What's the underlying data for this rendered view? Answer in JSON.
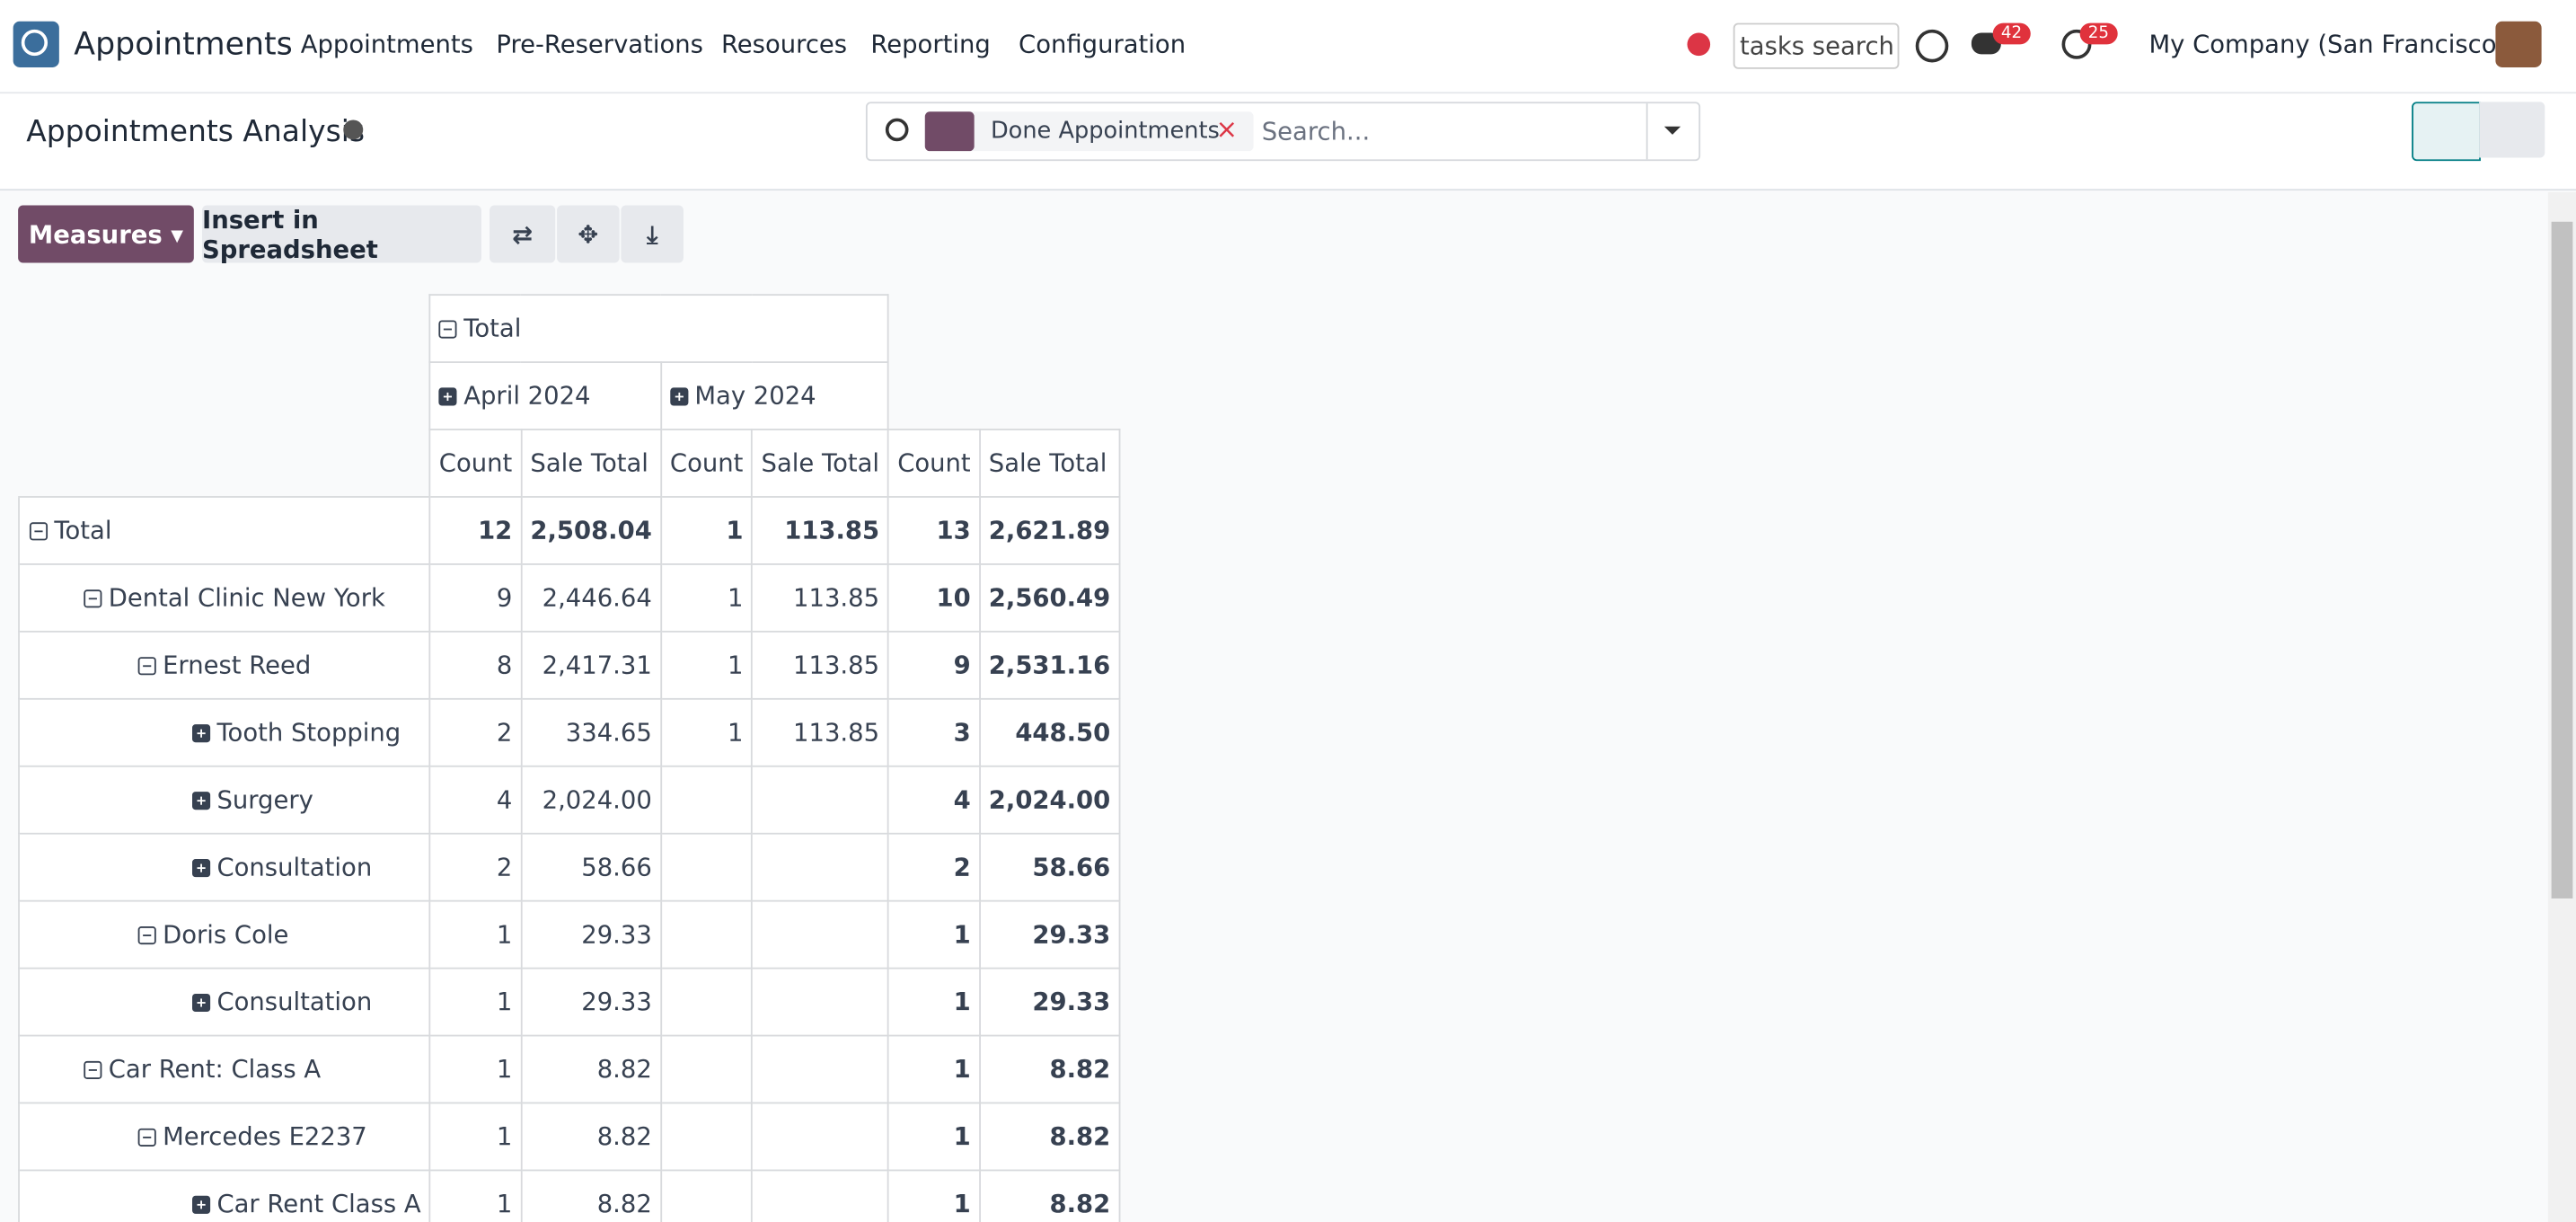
{
  "navbar": {
    "app_name": "Appointments",
    "menu": [
      "Appointments",
      "Pre-Reservations",
      "Resources",
      "Reporting",
      "Configuration"
    ],
    "search_placeholder": "tasks search",
    "messages_badge": "42",
    "activities_badge": "25",
    "company": "My Company (San Francisco)"
  },
  "control_panel": {
    "title": "Appointments Analysis",
    "facet": "Done Appointments",
    "search_placeholder": "Search...",
    "measures_button": "Measures",
    "insert_button": "Insert in Spreadsheet"
  },
  "table": {
    "header_total": "Total",
    "groups": [
      "April 2024",
      "May 2024"
    ],
    "measures": [
      "Count",
      "Sale Total",
      "Count",
      "Sale Total",
      "Count",
      "Sale Total"
    ],
    "rows": [
      {
        "label": "Total",
        "cells": [
          "12",
          "2,508.04",
          "1",
          "113.85",
          "13",
          "2,621.89"
        ]
      },
      {
        "label": "Dental Clinic New York",
        "cells": [
          "9",
          "2,446.64",
          "1",
          "113.85",
          "10",
          "2,560.49"
        ]
      },
      {
        "label": "Ernest Reed",
        "cells": [
          "8",
          "2,417.31",
          "1",
          "113.85",
          "9",
          "2,531.16"
        ]
      },
      {
        "label": "Tooth Stopping",
        "cells": [
          "2",
          "334.65",
          "1",
          "113.85",
          "3",
          "448.50"
        ]
      },
      {
        "label": "Surgery",
        "cells": [
          "4",
          "2,024.00",
          null,
          null,
          "4",
          "2,024.00"
        ]
      },
      {
        "label": "Consultation",
        "cells": [
          "2",
          "58.66",
          null,
          null,
          "2",
          "58.66"
        ]
      },
      {
        "label": "Doris Cole",
        "cells": [
          "1",
          "29.33",
          null,
          null,
          "1",
          "29.33"
        ]
      },
      {
        "label": "Consultation",
        "cells": [
          "1",
          "29.33",
          null,
          null,
          "1",
          "29.33"
        ]
      },
      {
        "label": "Car Rent: Class A",
        "cells": [
          "1",
          "8.82",
          null,
          null,
          "1",
          "8.82"
        ]
      },
      {
        "label": "Mercedes E2237",
        "cells": [
          "1",
          "8.82",
          null,
          null,
          "1",
          "8.82"
        ]
      },
      {
        "label": "Car Rent Class A",
        "cells": [
          "1",
          "8.82",
          null,
          null,
          "1",
          "8.82"
        ]
      }
    ]
  }
}
